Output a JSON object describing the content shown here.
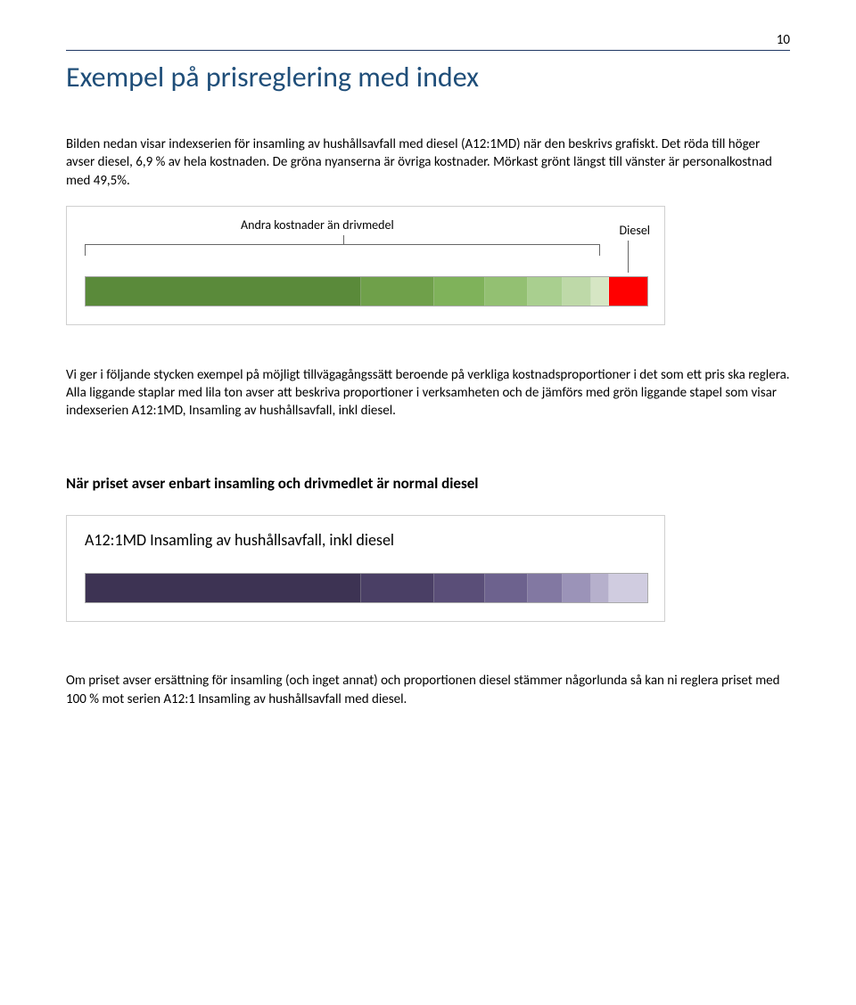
{
  "page_number": "10",
  "heading": "Exempel på prisreglering med index",
  "intro_para": "Bilden nedan visar indexserien för insamling av hushållsavfall med diesel (A12:1MD) när den beskrivs grafiskt. Det röda till höger avser diesel, 6,9 % av hela kostnaden. De gröna nyanserna är övriga kostnader. Mörkast grönt längst till vänster är personalkostnad med 49,5%.",
  "chart1": {
    "label_left": "Andra kostnader än drivmedel",
    "label_right": "Diesel",
    "segments": [
      {
        "w": 49.5,
        "color": "#5a8a3a"
      },
      {
        "w": 13.0,
        "color": "#6fa04a"
      },
      {
        "w": 9.0,
        "color": "#7fb25a"
      },
      {
        "w": 7.5,
        "color": "#93c072"
      },
      {
        "w": 6.0,
        "color": "#a9cf8f"
      },
      {
        "w": 5.0,
        "color": "#bed9a8"
      },
      {
        "w": 3.1,
        "color": "#d6e6c4"
      },
      {
        "w": 6.9,
        "color": "#ff0000"
      }
    ]
  },
  "mid_para": "Vi ger i följande stycken exempel på möjligt tillvägagångssätt beroende på verkliga kostnadsproportioner i det som ett pris ska reglera. Alla liggande staplar med lila ton avser att beskriva proportioner i verksamheten och de jämförs med grön liggande stapel som visar indexserien A12:1MD, Insamling av hushållsavfall, inkl diesel.",
  "section_bold": "När priset avser enbart insamling och drivmedlet är normal diesel",
  "chart2": {
    "title": "A12:1MD Insamling av hushållsavfall, inkl diesel",
    "segments": [
      {
        "w": 49.5,
        "color": "#3d3353"
      },
      {
        "w": 13.0,
        "color": "#4a3f65"
      },
      {
        "w": 9.0,
        "color": "#5a4e78"
      },
      {
        "w": 7.5,
        "color": "#6d628e"
      },
      {
        "w": 6.0,
        "color": "#8278a2"
      },
      {
        "w": 5.0,
        "color": "#9b93b8"
      },
      {
        "w": 3.1,
        "color": "#b6b0cc"
      },
      {
        "w": 6.9,
        "color": "#d0cce0"
      }
    ]
  },
  "closing_para": "Om priset avser ersättning för insamling (och inget annat) och proportionen diesel stämmer någorlunda så kan ni reglera priset med 100 % mot serien A12:1 Insamling av hushållsavfall med diesel."
}
